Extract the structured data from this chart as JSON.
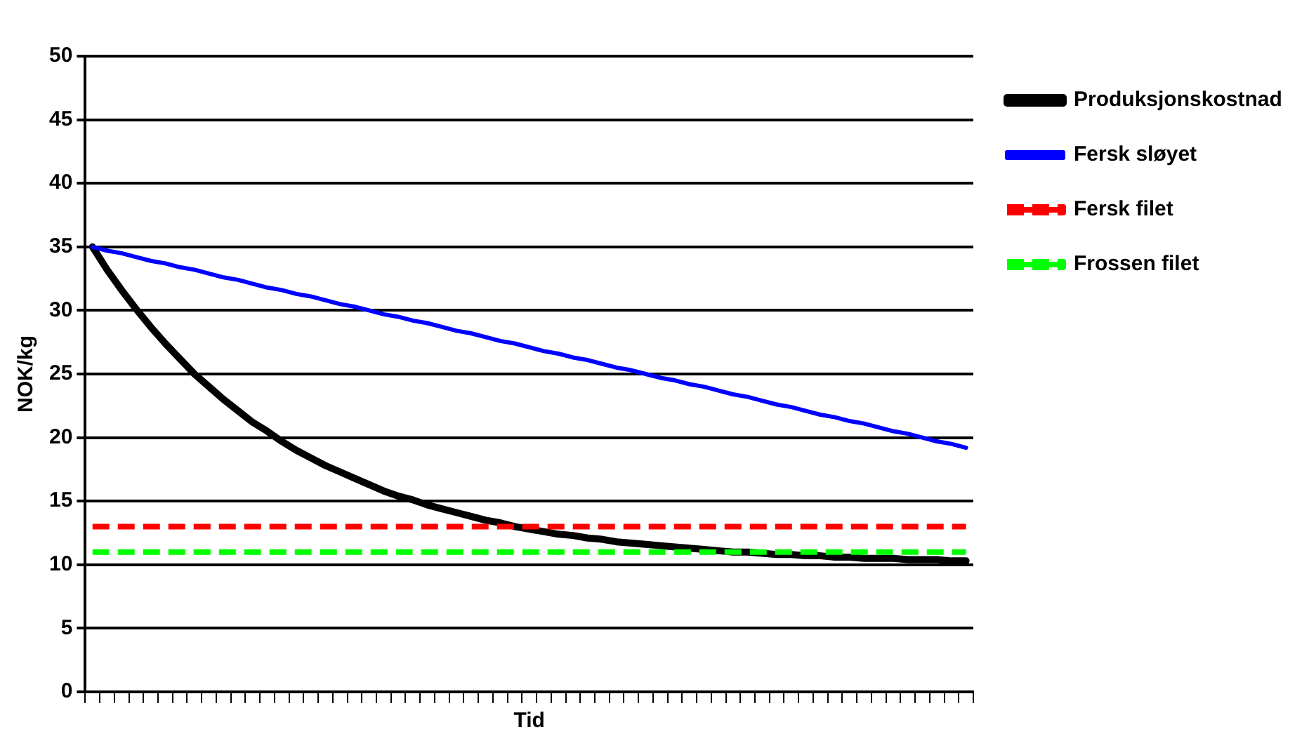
{
  "chart_data": {
    "type": "line",
    "xlabel": "Tid",
    "ylabel": "NOK/kg",
    "categories": [
      null,
      null,
      null,
      null,
      null,
      null,
      null,
      null,
      null,
      null,
      null,
      null,
      null,
      null,
      null,
      null,
      null,
      null,
      null,
      null,
      null,
      null,
      null,
      null,
      null,
      null,
      null,
      null,
      null,
      null,
      null,
      null,
      null,
      null,
      null,
      null,
      null,
      null,
      null,
      null,
      null,
      null,
      null,
      null,
      null,
      null,
      null,
      null,
      null,
      null,
      null,
      null,
      null,
      null,
      null,
      null,
      null,
      null,
      null,
      null,
      null
    ],
    "series": [
      {
        "name": "Produksjonskostnad",
        "color": "#000000",
        "line_style": "solid",
        "values": [
          35.0,
          33.2,
          31.6,
          30.1,
          28.7,
          27.4,
          26.2,
          25.0,
          24.0,
          23.0,
          22.1,
          21.2,
          20.5,
          19.7,
          19.0,
          18.4,
          17.8,
          17.3,
          16.8,
          16.3,
          15.8,
          15.4,
          15.1,
          14.7,
          14.4,
          14.1,
          13.8,
          13.5,
          13.3,
          13.0,
          12.8,
          12.6,
          12.4,
          12.3,
          12.1,
          12.0,
          11.8,
          11.7,
          11.6,
          11.5,
          11.4,
          11.3,
          11.2,
          11.1,
          11.0,
          11.0,
          10.9,
          10.8,
          10.8,
          10.7,
          10.7,
          10.6,
          10.6,
          10.5,
          10.5,
          10.5,
          10.4,
          10.4,
          10.4,
          10.3,
          10.3
        ]
      },
      {
        "name": "Fersk sløyet",
        "color": "#0000ff",
        "line_style": "solid",
        "values": [
          35.0,
          34.7,
          34.5,
          34.2,
          33.9,
          33.7,
          33.4,
          33.2,
          32.9,
          32.6,
          32.4,
          32.1,
          31.8,
          31.6,
          31.3,
          31.1,
          30.8,
          30.5,
          30.3,
          30.0,
          29.7,
          29.5,
          29.2,
          29.0,
          28.7,
          28.4,
          28.2,
          27.9,
          27.6,
          27.4,
          27.1,
          26.8,
          26.6,
          26.3,
          26.1,
          25.8,
          25.5,
          25.3,
          25.0,
          24.7,
          24.5,
          24.2,
          24.0,
          23.7,
          23.4,
          23.2,
          22.9,
          22.6,
          22.4,
          22.1,
          21.8,
          21.6,
          21.3,
          21.1,
          20.8,
          20.5,
          20.3,
          20.0,
          19.7,
          19.5,
          19.2
        ]
      },
      {
        "name": "Fersk filet",
        "color": "#ff0000",
        "line_style": "dashed",
        "values": [
          13,
          13,
          13,
          13,
          13,
          13,
          13,
          13,
          13,
          13,
          13,
          13,
          13,
          13,
          13,
          13,
          13,
          13,
          13,
          13,
          13,
          13,
          13,
          13,
          13,
          13,
          13,
          13,
          13,
          13,
          13,
          13,
          13,
          13,
          13,
          13,
          13,
          13,
          13,
          13,
          13,
          13,
          13,
          13,
          13,
          13,
          13,
          13,
          13,
          13,
          13,
          13,
          13,
          13,
          13,
          13,
          13,
          13,
          13,
          13,
          13
        ]
      },
      {
        "name": "Frossen filet",
        "color": "#00ff00",
        "line_style": "dashed",
        "values": [
          11,
          11,
          11,
          11,
          11,
          11,
          11,
          11,
          11,
          11,
          11,
          11,
          11,
          11,
          11,
          11,
          11,
          11,
          11,
          11,
          11,
          11,
          11,
          11,
          11,
          11,
          11,
          11,
          11,
          11,
          11,
          11,
          11,
          11,
          11,
          11,
          11,
          11,
          11,
          11,
          11,
          11,
          11,
          11,
          11,
          11,
          11,
          11,
          11,
          11,
          11,
          11,
          11,
          11,
          11,
          11,
          11,
          11,
          11,
          11,
          11
        ]
      }
    ],
    "ylim": [
      0,
      50
    ],
    "yticks": [
      0,
      5,
      10,
      15,
      20,
      25,
      30,
      35,
      40,
      45,
      50
    ],
    "grid": "y",
    "legend": "right",
    "marker": "none",
    "tick_labels": "y"
  }
}
